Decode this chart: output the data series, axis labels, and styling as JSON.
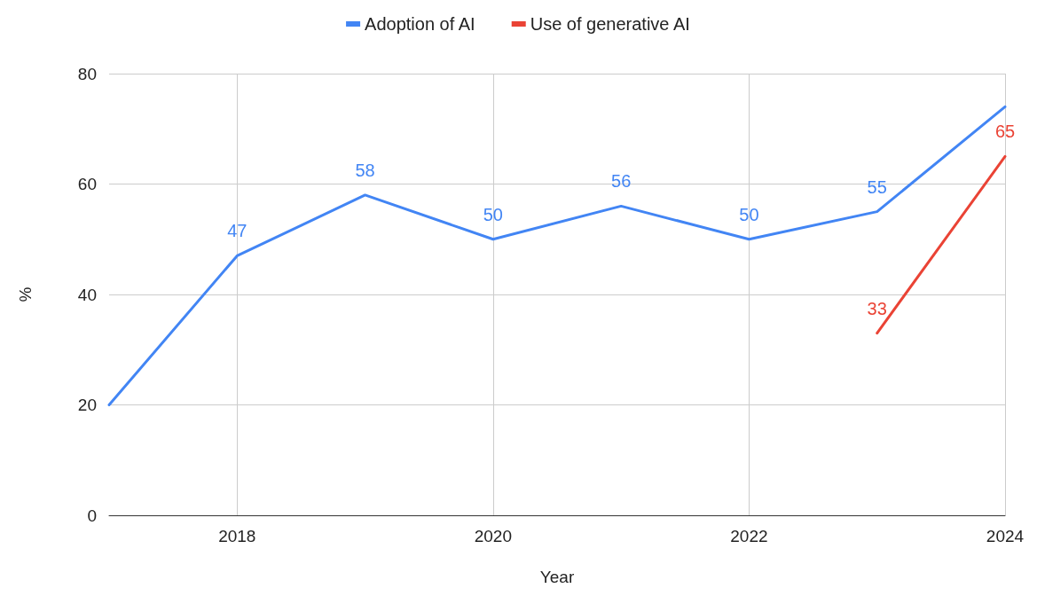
{
  "chart_data": {
    "type": "line",
    "xlabel": "Year",
    "ylabel": "%",
    "xlim": [
      2017,
      2024
    ],
    "xticks": [
      2018,
      2020,
      2022,
      2024
    ],
    "ylim": [
      0,
      80
    ],
    "yticks": [
      0,
      20,
      40,
      60,
      80
    ],
    "grid": true,
    "legend": "top",
    "marker": "none",
    "line_style": "solid",
    "series": [
      {
        "name": "Adoption of AI",
        "color": "#4285f4",
        "x": [
          2017,
          2018,
          2019,
          2020,
          2021,
          2022,
          2023,
          2024
        ],
        "values": [
          20,
          47,
          58,
          50,
          56,
          50,
          55,
          74
        ],
        "value_labels": [
          null,
          "47",
          "58",
          "50",
          "56",
          "50",
          "55",
          null
        ]
      },
      {
        "name": "Use of generative AI",
        "color": "#ea4335",
        "x": [
          2023,
          2024
        ],
        "values": [
          33,
          65
        ],
        "value_labels": [
          "33",
          "65"
        ]
      }
    ]
  }
}
